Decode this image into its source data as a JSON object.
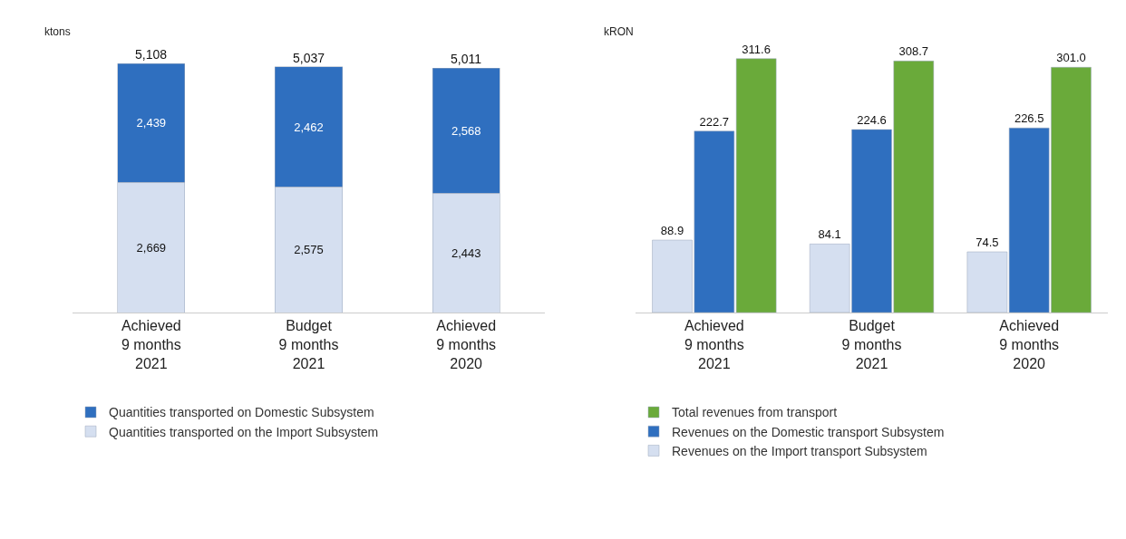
{
  "chart_data": [
    {
      "type": "bar",
      "stacked": true,
      "ylabel": "ktons",
      "categories": [
        "Achieved\n9 months\n2021",
        "Budget\n9 months\n2021",
        "Achieved\n9 months\n2020"
      ],
      "series": [
        {
          "name": "Quantities transported on the Import Subsystem",
          "color": "#d5dff0",
          "values": [
            2669,
            2575,
            2443
          ],
          "value_labels": [
            "2,669",
            "2,575",
            "2,443"
          ]
        },
        {
          "name": "Quantities transported on Domestic Subsystem",
          "color": "#2f6fbf",
          "values": [
            2439,
            2462,
            2568
          ],
          "value_labels": [
            "2,439",
            "2,462",
            "2,568"
          ]
        }
      ],
      "totals": [
        "5,108",
        "5,037",
        "5,011"
      ],
      "legend": "bottom",
      "grid": false
    },
    {
      "type": "bar",
      "ylabel": "kRON",
      "categories": [
        "Achieved\n9 months\n2021",
        "Budget\n9 months\n2021",
        "Achieved\n9 months\n2020"
      ],
      "series": [
        {
          "name": "Revenues on the Import transport Subsystem",
          "color": "#d5dff0",
          "values": [
            88.9,
            84.1,
            74.5
          ],
          "value_labels": [
            "88.9",
            "84.1",
            "74.5"
          ]
        },
        {
          "name": "Revenues on the Domestic transport Subsystem",
          "color": "#2f6fbf",
          "values": [
            222.7,
            224.6,
            226.5
          ],
          "value_labels": [
            "222.7",
            "224.6",
            "226.5"
          ]
        },
        {
          "name": "Total revenues from transport",
          "color": "#6aaa3a",
          "values": [
            311.6,
            308.7,
            301.0
          ],
          "value_labels": [
            "311.6",
            "308.7",
            "301.0"
          ]
        }
      ],
      "legend": "bottom",
      "grid": false
    }
  ]
}
